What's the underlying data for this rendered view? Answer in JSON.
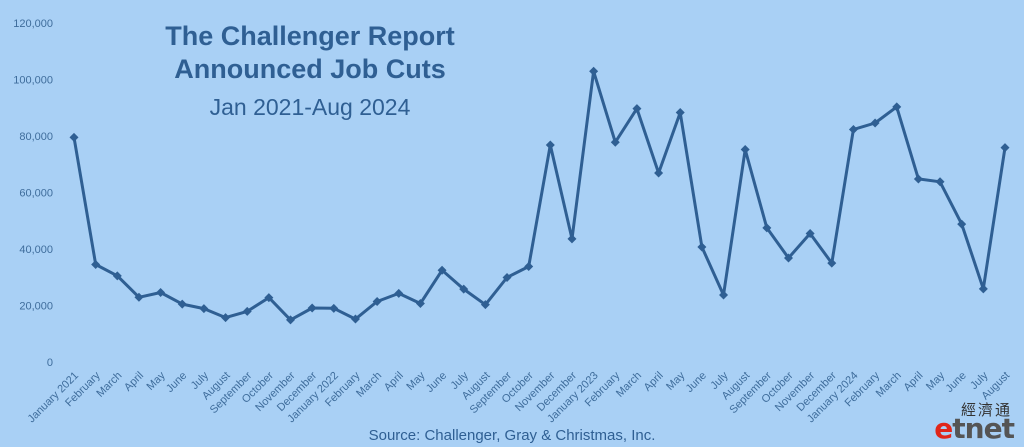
{
  "chart_data": {
    "type": "line",
    "title": "The Challenger Report",
    "title_line2": "Announced Job Cuts",
    "subtitle": "Jan 2021-Aug 2024",
    "source": "Source: Challenger, Gray & Christmas, Inc.",
    "ylim": [
      0,
      120000
    ],
    "yticks": [
      0,
      20000,
      40000,
      60000,
      80000,
      100000,
      120000
    ],
    "ytick_labels": [
      "0",
      "20,000",
      "40,000",
      "60,000",
      "80,000",
      "100,000",
      "120,000"
    ],
    "grid": false,
    "legend": "none",
    "line_color": "#2f5f93",
    "background_color": "#a9d0f5",
    "categories": [
      "January 2021",
      "February",
      "March",
      "April",
      "May",
      "June",
      "July",
      "August",
      "September",
      "October",
      "November",
      "December",
      "January 2022",
      "February",
      "March",
      "April",
      "May",
      "June",
      "July",
      "August",
      "September",
      "October",
      "November",
      "December",
      "January 2023",
      "February",
      "March",
      "April",
      "May",
      "June",
      "July",
      "August",
      "September",
      "October",
      "November",
      "December",
      "January 2024",
      "February",
      "March",
      "April",
      "May",
      "June",
      "July",
      "August"
    ],
    "values": [
      79500,
      34500,
      30500,
      22900,
      24600,
      20500,
      18900,
      15700,
      17900,
      22800,
      14900,
      19100,
      19000,
      15200,
      21400,
      24300,
      20700,
      32500,
      25800,
      20300,
      29900,
      33800,
      76800,
      43600,
      102900,
      77800,
      89700,
      66900,
      88300,
      40700,
      23700,
      75200,
      47500,
      36800,
      45500,
      35000,
      82300,
      84600,
      90300,
      64800,
      63800,
      48800,
      25900,
      75900
    ]
  },
  "logo": {
    "chinese": "經濟通",
    "latin_e": "e",
    "latin_rest": "tnet"
  }
}
